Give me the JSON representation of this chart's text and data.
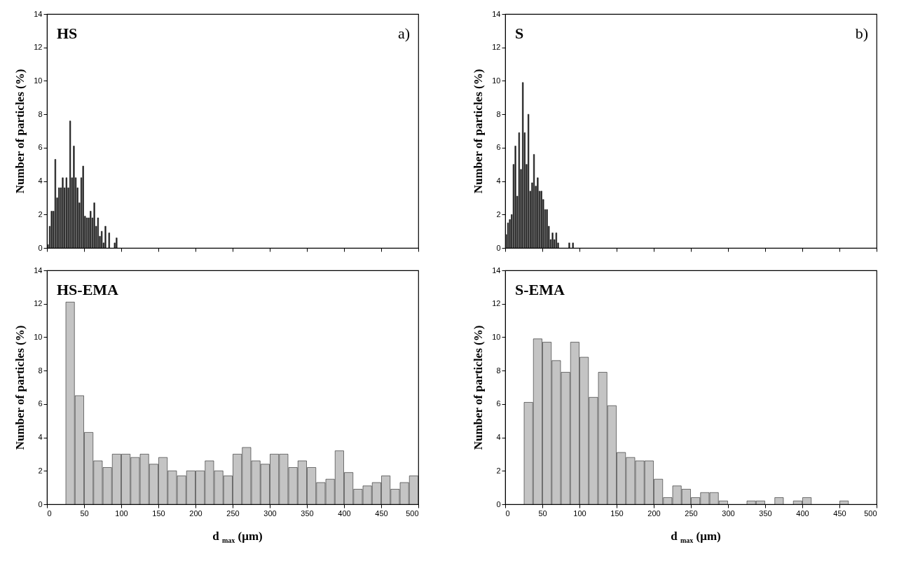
{
  "chart_data": [
    {
      "type": "histogram",
      "ylabel": "Number of particles (%)",
      "annotations": [
        "HS",
        "a)"
      ],
      "color": "#1e1e1e",
      "tick_labels": "y",
      "xlim": [
        0,
        500
      ],
      "xticks": [
        0,
        50,
        100,
        150,
        200,
        250,
        300,
        350,
        400,
        450,
        500
      ],
      "ylim": [
        0,
        14
      ],
      "yticks": [
        0,
        2,
        4,
        6,
        8,
        10,
        12,
        14
      ],
      "bins": [
        0,
        2.5,
        5,
        7.5,
        10,
        12.5,
        15,
        17.5,
        20,
        22.5,
        25,
        27.5,
        30,
        32.5,
        35,
        37.5,
        40,
        42.5,
        45,
        47.5,
        50,
        52.5,
        55,
        57.5,
        60,
        62.5,
        65,
        67.5,
        70,
        72.5,
        75,
        77.5,
        80,
        82.5,
        85,
        87.5,
        90,
        92.5,
        95
      ],
      "values": [
        0.2,
        1.3,
        2.2,
        2.2,
        5.3,
        3.0,
        3.6,
        3.6,
        4.2,
        3.6,
        4.2,
        3.6,
        7.6,
        4.2,
        6.1,
        4.2,
        3.6,
        2.7,
        4.2,
        4.9,
        1.9,
        1.8,
        1.8,
        2.2,
        1.8,
        2.7,
        1.3,
        1.8,
        0.7,
        1.0,
        0.3,
        1.3,
        0,
        0.9,
        0,
        0,
        0.3,
        0.6
      ]
    },
    {
      "type": "histogram",
      "ylabel": "Number of particles (%)",
      "annotations": [
        "S",
        "b)"
      ],
      "color": "#1e1e1e",
      "tick_labels": "y",
      "xlim": [
        0,
        500
      ],
      "xticks": [
        0,
        50,
        100,
        150,
        200,
        250,
        300,
        350,
        400,
        450,
        500
      ],
      "ylim": [
        0,
        14
      ],
      "yticks": [
        0,
        2,
        4,
        6,
        8,
        10,
        12,
        14
      ],
      "bins": [
        0,
        2.5,
        5,
        7.5,
        10,
        12.5,
        15,
        17.5,
        20,
        22.5,
        25,
        27.5,
        30,
        32.5,
        35,
        37.5,
        40,
        42.5,
        45,
        47.5,
        50,
        52.5,
        55,
        57.5,
        60,
        62.5,
        65,
        67.5,
        70,
        72.5,
        75,
        77.5,
        80,
        82.5,
        85,
        87.5,
        90,
        92.5,
        95
      ],
      "values": [
        0.8,
        1.5,
        1.7,
        2.0,
        5.0,
        6.1,
        3.1,
        6.9,
        4.7,
        9.9,
        6.9,
        5.0,
        8.0,
        3.4,
        3.9,
        5.6,
        3.7,
        4.2,
        3.4,
        3.4,
        2.9,
        2.3,
        2.3,
        1.3,
        0.5,
        0.9,
        0.5,
        0.9,
        0.3,
        0,
        0,
        0,
        0,
        0,
        0.3,
        0,
        0.3,
        0
      ]
    },
    {
      "type": "histogram",
      "xlabel": "d $_{max}$ (μm)",
      "ylabel": "Number of particles (%)",
      "annotations": [
        "HS-EMA"
      ],
      "color": "#c4c4c4",
      "xlim": [
        0,
        500
      ],
      "xticks": [
        0,
        50,
        100,
        150,
        200,
        250,
        300,
        350,
        400,
        450,
        500
      ],
      "ylim": [
        0,
        14
      ],
      "yticks": [
        0,
        2,
        4,
        6,
        8,
        10,
        12,
        14
      ],
      "bins": [
        25,
        37.5,
        50,
        62.5,
        75,
        87.5,
        100,
        112.5,
        125,
        137.5,
        150,
        162.5,
        175,
        187.5,
        200,
        212.5,
        225,
        237.5,
        250,
        262.5,
        275,
        287.5,
        300,
        312.5,
        325,
        337.5,
        350,
        362.5,
        375,
        387.5,
        400,
        412.5,
        425,
        437.5,
        450,
        462.5,
        475,
        487.5,
        500
      ],
      "values": [
        12.1,
        6.5,
        4.3,
        2.6,
        2.2,
        3.0,
        3.0,
        2.8,
        3.0,
        2.4,
        2.8,
        2.0,
        1.7,
        2.0,
        2.0,
        2.6,
        2.0,
        1.7,
        3.0,
        3.4,
        2.6,
        2.4,
        3.0,
        3.0,
        2.2,
        2.6,
        2.2,
        1.3,
        1.5,
        3.2,
        1.9,
        0.9,
        1.1,
        1.3,
        1.7,
        0.9,
        1.3,
        1.7
      ]
    },
    {
      "type": "histogram",
      "xlabel": "d $_{max}$ (μm)",
      "ylabel": "Number of particles (%)",
      "annotations": [
        "S-EMA"
      ],
      "color": "#c4c4c4",
      "xlim": [
        0,
        500
      ],
      "xticks": [
        0,
        50,
        100,
        150,
        200,
        250,
        300,
        350,
        400,
        450,
        500
      ],
      "ylim": [
        0,
        14
      ],
      "yticks": [
        0,
        2,
        4,
        6,
        8,
        10,
        12,
        14
      ],
      "bins": [
        25,
        37.5,
        50,
        62.5,
        75,
        87.5,
        100,
        112.5,
        125,
        137.5,
        150,
        162.5,
        175,
        187.5,
        200,
        212.5,
        225,
        237.5,
        250,
        262.5,
        275,
        287.5,
        300,
        312.5,
        325,
        337.5,
        350,
        362.5,
        375,
        387.5,
        400,
        412.5,
        425,
        437.5,
        450,
        462.5,
        475,
        487.5,
        500
      ],
      "values": [
        6.1,
        9.9,
        9.7,
        8.6,
        7.9,
        9.7,
        8.8,
        6.4,
        7.9,
        5.9,
        3.1,
        2.8,
        2.6,
        2.6,
        1.5,
        0.4,
        1.1,
        0.9,
        0.4,
        0.7,
        0.7,
        0.2,
        0,
        0,
        0.2,
        0.2,
        0,
        0.4,
        0,
        0.2,
        0.4,
        0,
        0,
        0,
        0.2,
        0,
        0,
        0
      ]
    }
  ]
}
